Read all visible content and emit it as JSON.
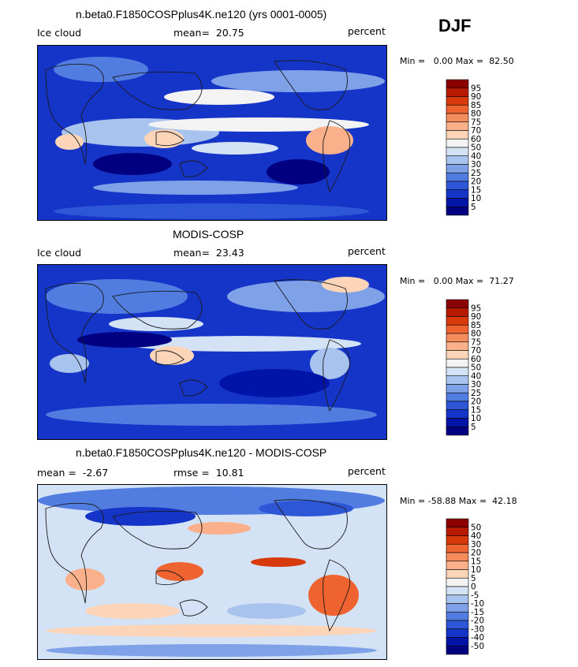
{
  "season": "DJF",
  "colors": {
    "abs_scale": [
      "#8a0000",
      "#b71a00",
      "#d93a0c",
      "#ef6330",
      "#f58c5c",
      "#f9b08b",
      "#fcd4b8",
      "#f3f3f3",
      "#d3e2f5",
      "#a8c4ee",
      "#7fa1e8",
      "#527de0",
      "#2d57d6",
      "#1535c8",
      "#0015a8",
      "#000080"
    ],
    "diff_scale": [
      "#8a0000",
      "#b71a00",
      "#d93a0c",
      "#ef6330",
      "#f58c5c",
      "#f9b08b",
      "#fcd4b8",
      "#f3f3f3",
      "#d3e2f5",
      "#a8c4ee",
      "#7fa1e8",
      "#527de0",
      "#2d57d6",
      "#1535c8",
      "#0015a8",
      "#000080"
    ],
    "coast": "#1a1a1a"
  },
  "chart_data": [
    {
      "type": "heatmap",
      "title": "n.beta0.F1850COSPplus4K.ne120 (yrs 0001-0005)",
      "variable": "Ice cloud",
      "stat_label": "mean=",
      "stat_value": "20.75",
      "units": "percent",
      "min_label": "Min =",
      "min_value": "0.00",
      "max_label": "Max =",
      "max_value": "82.50",
      "colorbar_levels": [
        "95",
        "90",
        "85",
        "80",
        "75",
        "70",
        "60",
        "50",
        "40",
        "30",
        "25",
        "20",
        "15",
        "10",
        "5"
      ]
    },
    {
      "type": "heatmap",
      "title": "MODIS-COSP",
      "variable": "Ice cloud",
      "stat_label": "mean=",
      "stat_value": "23.43",
      "units": "percent",
      "min_label": "Min =",
      "min_value": "0.00",
      "max_label": "Max =",
      "max_value": "71.27",
      "colorbar_levels": [
        "95",
        "90",
        "85",
        "80",
        "75",
        "70",
        "60",
        "50",
        "40",
        "30",
        "25",
        "20",
        "15",
        "10",
        "5"
      ]
    },
    {
      "type": "heatmap",
      "title": "n.beta0.F1850COSPplus4K.ne120 - MODIS-COSP",
      "stat_label": "mean =",
      "stat_value": "-2.67",
      "stat2_label": "rmse =",
      "stat2_value": "10.81",
      "units": "percent",
      "min_label": "Min =",
      "min_value": "-58.88",
      "max_label": "Max =",
      "max_value": "42.18",
      "colorbar_levels": [
        "50",
        "40",
        "30",
        "20",
        "15",
        "10",
        "5",
        "0",
        "-5",
        "-10",
        "-15",
        "-20",
        "-30",
        "-40",
        "-50"
      ]
    }
  ]
}
